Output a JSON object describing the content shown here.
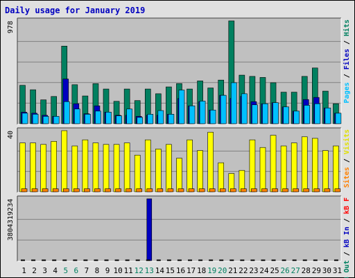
{
  "chart_data": {
    "type": "bar",
    "title": "Daily usage for January 2019",
    "categories": [
      "1",
      "2",
      "3",
      "4",
      "5",
      "6",
      "7",
      "8",
      "9",
      "10",
      "11",
      "12",
      "13",
      "14",
      "15",
      "16",
      "17",
      "18",
      "19",
      "20",
      "21",
      "22",
      "23",
      "24",
      "25",
      "26",
      "27",
      "28",
      "29",
      "30",
      "31"
    ],
    "weekend_days": [
      "5",
      "6",
      "12",
      "13",
      "19",
      "20",
      "26",
      "27"
    ],
    "panels": [
      {
        "id": "hits",
        "ymax": 978,
        "ymax_label": "978",
        "right_labels": [
          {
            "text": "Hits",
            "color": "#008060"
          },
          {
            "text": " / ",
            "color": "#000000"
          },
          {
            "text": "Files",
            "color": "#0000C0"
          },
          {
            "text": " / ",
            "color": "#000000"
          },
          {
            "text": "Pages",
            "color": "#00C0FF"
          }
        ],
        "series": [
          {
            "name": "Hits",
            "color": "#008060",
            "values": [
              365,
              323,
              227,
              259,
              738,
              371,
              264,
              381,
              330,
              213,
              330,
              220,
              330,
              285,
              350,
              382,
              330,
              407,
              340,
              415,
              978,
              462,
              450,
              440,
              390,
              300,
              300,
              450,
              530,
              310,
              190
            ]
          },
          {
            "name": "Files",
            "color": "#0000C0",
            "values": [
              110,
              100,
              80,
              70,
              425,
              190,
              95,
              170,
              110,
              80,
              80,
              70,
              80,
              80,
              90,
              240,
              170,
              210,
              130,
              270,
              240,
              260,
              210,
              190,
              200,
              160,
              120,
              230,
              250,
              150,
              100
            ]
          },
          {
            "name": "Pages",
            "color": "#00C0FF",
            "values": [
              100,
              90,
              70,
              70,
              210,
              140,
              90,
              120,
              110,
              75,
              140,
              60,
              90,
              125,
              90,
              320,
              170,
              215,
              130,
              270,
              390,
              285,
              180,
              190,
              200,
              160,
              120,
              175,
              190,
              150,
              100
            ]
          }
        ]
      },
      {
        "id": "visits",
        "ymax": 40,
        "ymax_label": "40",
        "right_labels": [
          {
            "text": "Visits",
            "color": "#E0E000"
          },
          {
            "text": " / ",
            "color": "#000000"
          },
          {
            "text": "Sites",
            "color": "#FF8000"
          }
        ],
        "series": [
          {
            "name": "Visits",
            "color": "#FFFF00",
            "values": [
              32,
              32,
              31,
              33,
              40,
              30,
              34,
              32,
              31,
              31,
              32,
              24,
              34,
              28,
              31,
              22,
              34,
              27,
              39,
              19,
              12,
              14,
              34,
              29,
              37,
              30,
              32,
              36,
              35,
              27,
              30
            ]
          },
          {
            "name": "Sites",
            "color": "#FF8000",
            "values": [
              2,
              2,
              2,
              2,
              2,
              2,
              2,
              2,
              2,
              2,
              2,
              2,
              2,
              2,
              2,
              2,
              2,
              2,
              2,
              2,
              2,
              2,
              2,
              2,
              2,
              2,
              2,
              2,
              2,
              2,
              2
            ]
          }
        ]
      },
      {
        "id": "kbytes",
        "ymax": 3804319234,
        "ymax_label": "3804319234",
        "right_labels": [
          {
            "text": "kB F",
            "color": "#FF0000"
          },
          {
            "text": " / ",
            "color": "#000000"
          },
          {
            "text": "kB In",
            "color": "#0000C0"
          },
          {
            "text": " / ",
            "color": "#000000"
          },
          {
            "text": "kB Out",
            "color": "#008060"
          }
        ],
        "series": [
          {
            "name": "kB In",
            "color": "#0000C0",
            "values": [
              0,
              0,
              0,
              0,
              0,
              0,
              0,
              0,
              0,
              0,
              0,
              0,
              3804319234,
              0,
              0,
              0,
              0,
              0,
              0,
              0,
              0,
              0,
              0,
              0,
              0,
              0,
              0,
              0,
              0,
              0,
              0
            ]
          }
        ]
      }
    ],
    "colors": {
      "weekday_label": "#000000",
      "weekend_label": "#008060",
      "title": "#0000C0",
      "panel_bg": "#C0C0C0",
      "frame_bg": "#E0E0E0",
      "gridline": "#808080"
    }
  }
}
